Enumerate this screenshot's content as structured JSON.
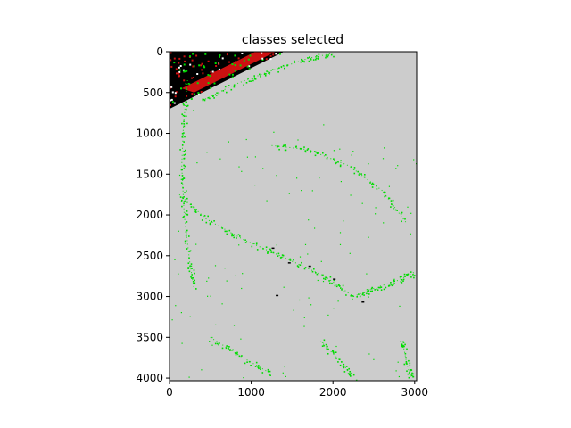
{
  "chart_data": {
    "type": "heatmap",
    "title": "classes selected",
    "xlabel": "",
    "ylabel": "",
    "xlim": [
      0,
      3024
    ],
    "ylim": [
      4032,
      0
    ],
    "x_ticks": [
      0,
      1000,
      2000,
      3000
    ],
    "y_ticks": [
      0,
      500,
      1000,
      1500,
      2000,
      2500,
      3000,
      3500,
      4000
    ],
    "grid": false,
    "legend": "none",
    "class_colors": {
      "background": "#cccccc",
      "selected": "#00dd00",
      "red_class": "#cc1111",
      "dark_class": "#000000",
      "light_class": "#ffffff"
    },
    "regions": [
      {
        "class": "dark_class",
        "polygon": [
          [
            0,
            0
          ],
          [
            1400,
            0
          ],
          [
            0,
            700
          ]
        ]
      },
      {
        "class": "red_class",
        "polygon": [
          [
            300,
            500
          ],
          [
            1300,
            0
          ],
          [
            1050,
            0
          ],
          [
            150,
            450
          ]
        ]
      }
    ],
    "curves": [
      {
        "class": "selected",
        "points": [
          [
            220,
            350
          ],
          [
            170,
            900
          ],
          [
            150,
            1400
          ],
          [
            180,
            2000
          ],
          [
            250,
            2600
          ],
          [
            300,
            2900
          ]
        ]
      },
      {
        "class": "selected",
        "points": [
          [
            120,
            1750
          ],
          [
            450,
            2050
          ],
          [
            900,
            2300
          ],
          [
            1350,
            2500
          ],
          [
            1900,
            2750
          ],
          [
            2250,
            3000
          ]
        ]
      },
      {
        "class": "selected",
        "points": [
          [
            2250,
            3000
          ],
          [
            2500,
            2900
          ],
          [
            2800,
            2800
          ],
          [
            3000,
            2700
          ]
        ]
      },
      {
        "class": "selected",
        "points": [
          [
            1250,
            1150
          ],
          [
            1700,
            1200
          ],
          [
            2200,
            1400
          ],
          [
            2600,
            1700
          ],
          [
            2900,
            2100
          ]
        ]
      },
      {
        "class": "selected",
        "points": [
          [
            500,
            3500
          ],
          [
            900,
            3750
          ],
          [
            1250,
            3950
          ]
        ]
      },
      {
        "class": "selected",
        "points": [
          [
            1850,
            3550
          ],
          [
            2100,
            3800
          ],
          [
            2250,
            4000
          ]
        ]
      },
      {
        "class": "selected",
        "points": [
          [
            400,
            600
          ],
          [
            800,
            400
          ],
          [
            1200,
            250
          ],
          [
            1700,
            80
          ],
          [
            2000,
            20
          ]
        ]
      },
      {
        "class": "selected",
        "points": [
          [
            2850,
            3550
          ],
          [
            2900,
            3800
          ],
          [
            2950,
            4000
          ]
        ]
      }
    ]
  }
}
